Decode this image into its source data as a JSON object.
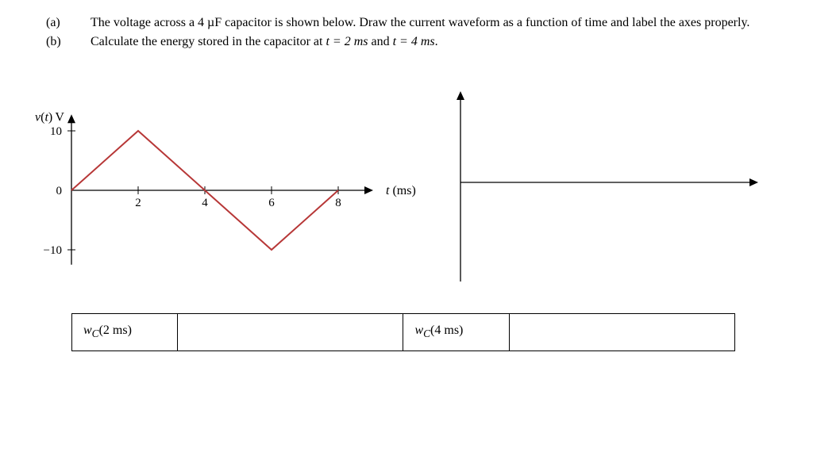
{
  "problem": {
    "a_text": "The voltage across a 4 µF capacitor is shown below. Draw the current waveform as a function of time and label the axes properly.",
    "b_text_prefix": "Calculate the energy stored in the capacitor at ",
    "b_t1": "t = 2 ms",
    "b_and": " and ",
    "b_t2": "t = 4 ms",
    "b_dot": ".",
    "label_a": "(a)",
    "label_b": "(b)"
  },
  "voltage_chart": {
    "type": "line",
    "y_label": "v(t) V",
    "x_label": "t (ms)",
    "x_ticks": [
      2,
      4,
      6,
      8
    ],
    "y_ticks": [
      -10,
      0,
      10
    ],
    "xlim": [
      0,
      9
    ],
    "ylim": [
      -12,
      12
    ],
    "points": [
      {
        "t": 0,
        "v": 0
      },
      {
        "t": 2,
        "v": 10
      },
      {
        "t": 4,
        "v": 0
      },
      {
        "t": 6,
        "v": -10
      },
      {
        "t": 8,
        "v": 0
      }
    ],
    "line_color": "#b73737",
    "line_width": 2,
    "axis_color": "#000000",
    "axis_width": 1.3,
    "tick_len": 5,
    "background_color": "#ffffff"
  },
  "blank_axes": {
    "axis_color": "#000000",
    "axis_width": 1.3
  },
  "answers": {
    "wc2_label": "w_C(2 ms)",
    "wc2_value": "",
    "wc4_label": "w_C(4 ms)",
    "wc4_value": ""
  }
}
